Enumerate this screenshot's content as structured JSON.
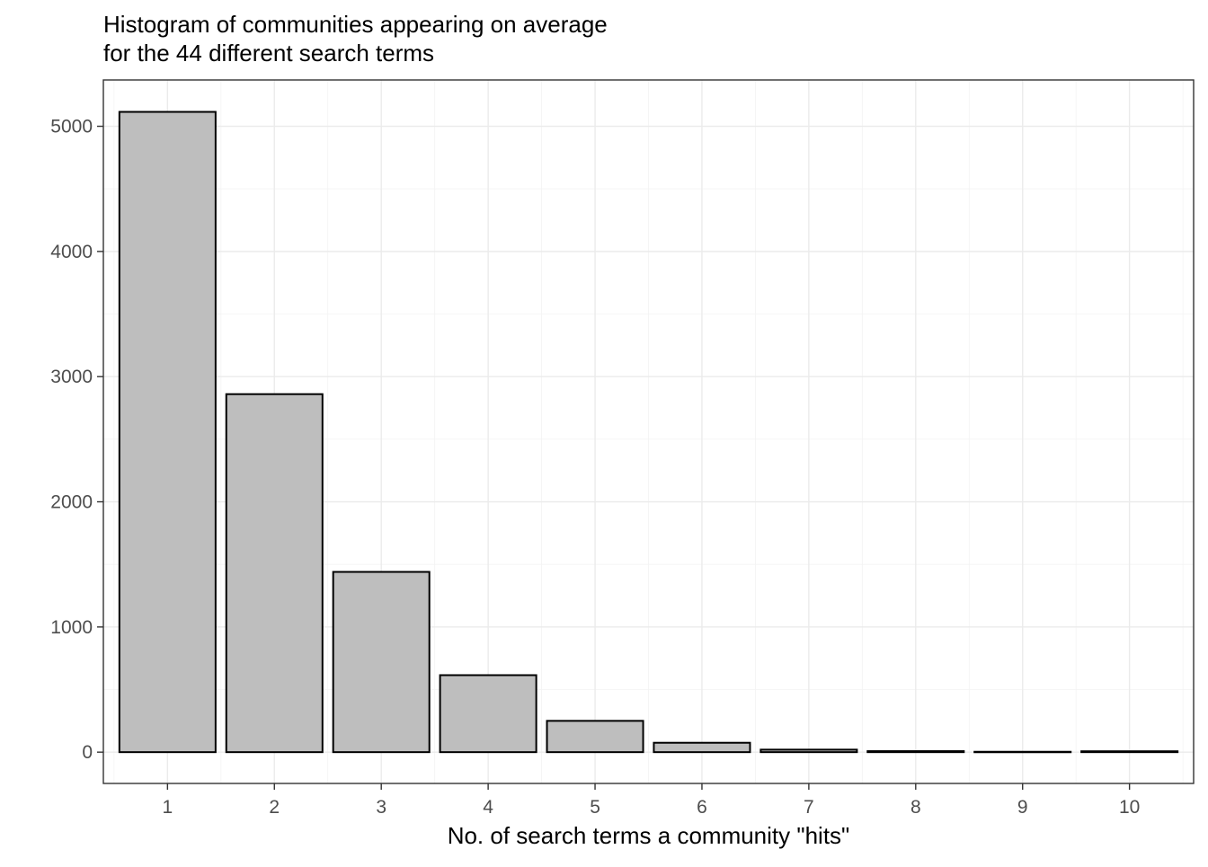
{
  "chart_data": {
    "type": "bar",
    "title": "Histogram of communities appearing on average",
    "subtitle": "for the 44 different search terms",
    "xlabel": "No. of search terms a community \"hits\"",
    "ylabel": "",
    "categories": [
      "1",
      "2",
      "3",
      "4",
      "5",
      "6",
      "7",
      "8",
      "9",
      "10"
    ],
    "values": [
      5115,
      2860,
      1440,
      615,
      250,
      75,
      20,
      8,
      3,
      7
    ],
    "ylim": [
      -250,
      5370
    ],
    "yticks": [
      "0",
      "1000",
      "2000",
      "3000",
      "4000",
      "5000"
    ],
    "grid": true,
    "legend": "none",
    "colors": {
      "bar_fill": "#bebebe",
      "bar_stroke": "#000000",
      "grid_major": "#ebebeb",
      "grid_minor": "#f3f3f3",
      "panel_border": "#333333",
      "tick_text": "#4d4d4d"
    }
  }
}
